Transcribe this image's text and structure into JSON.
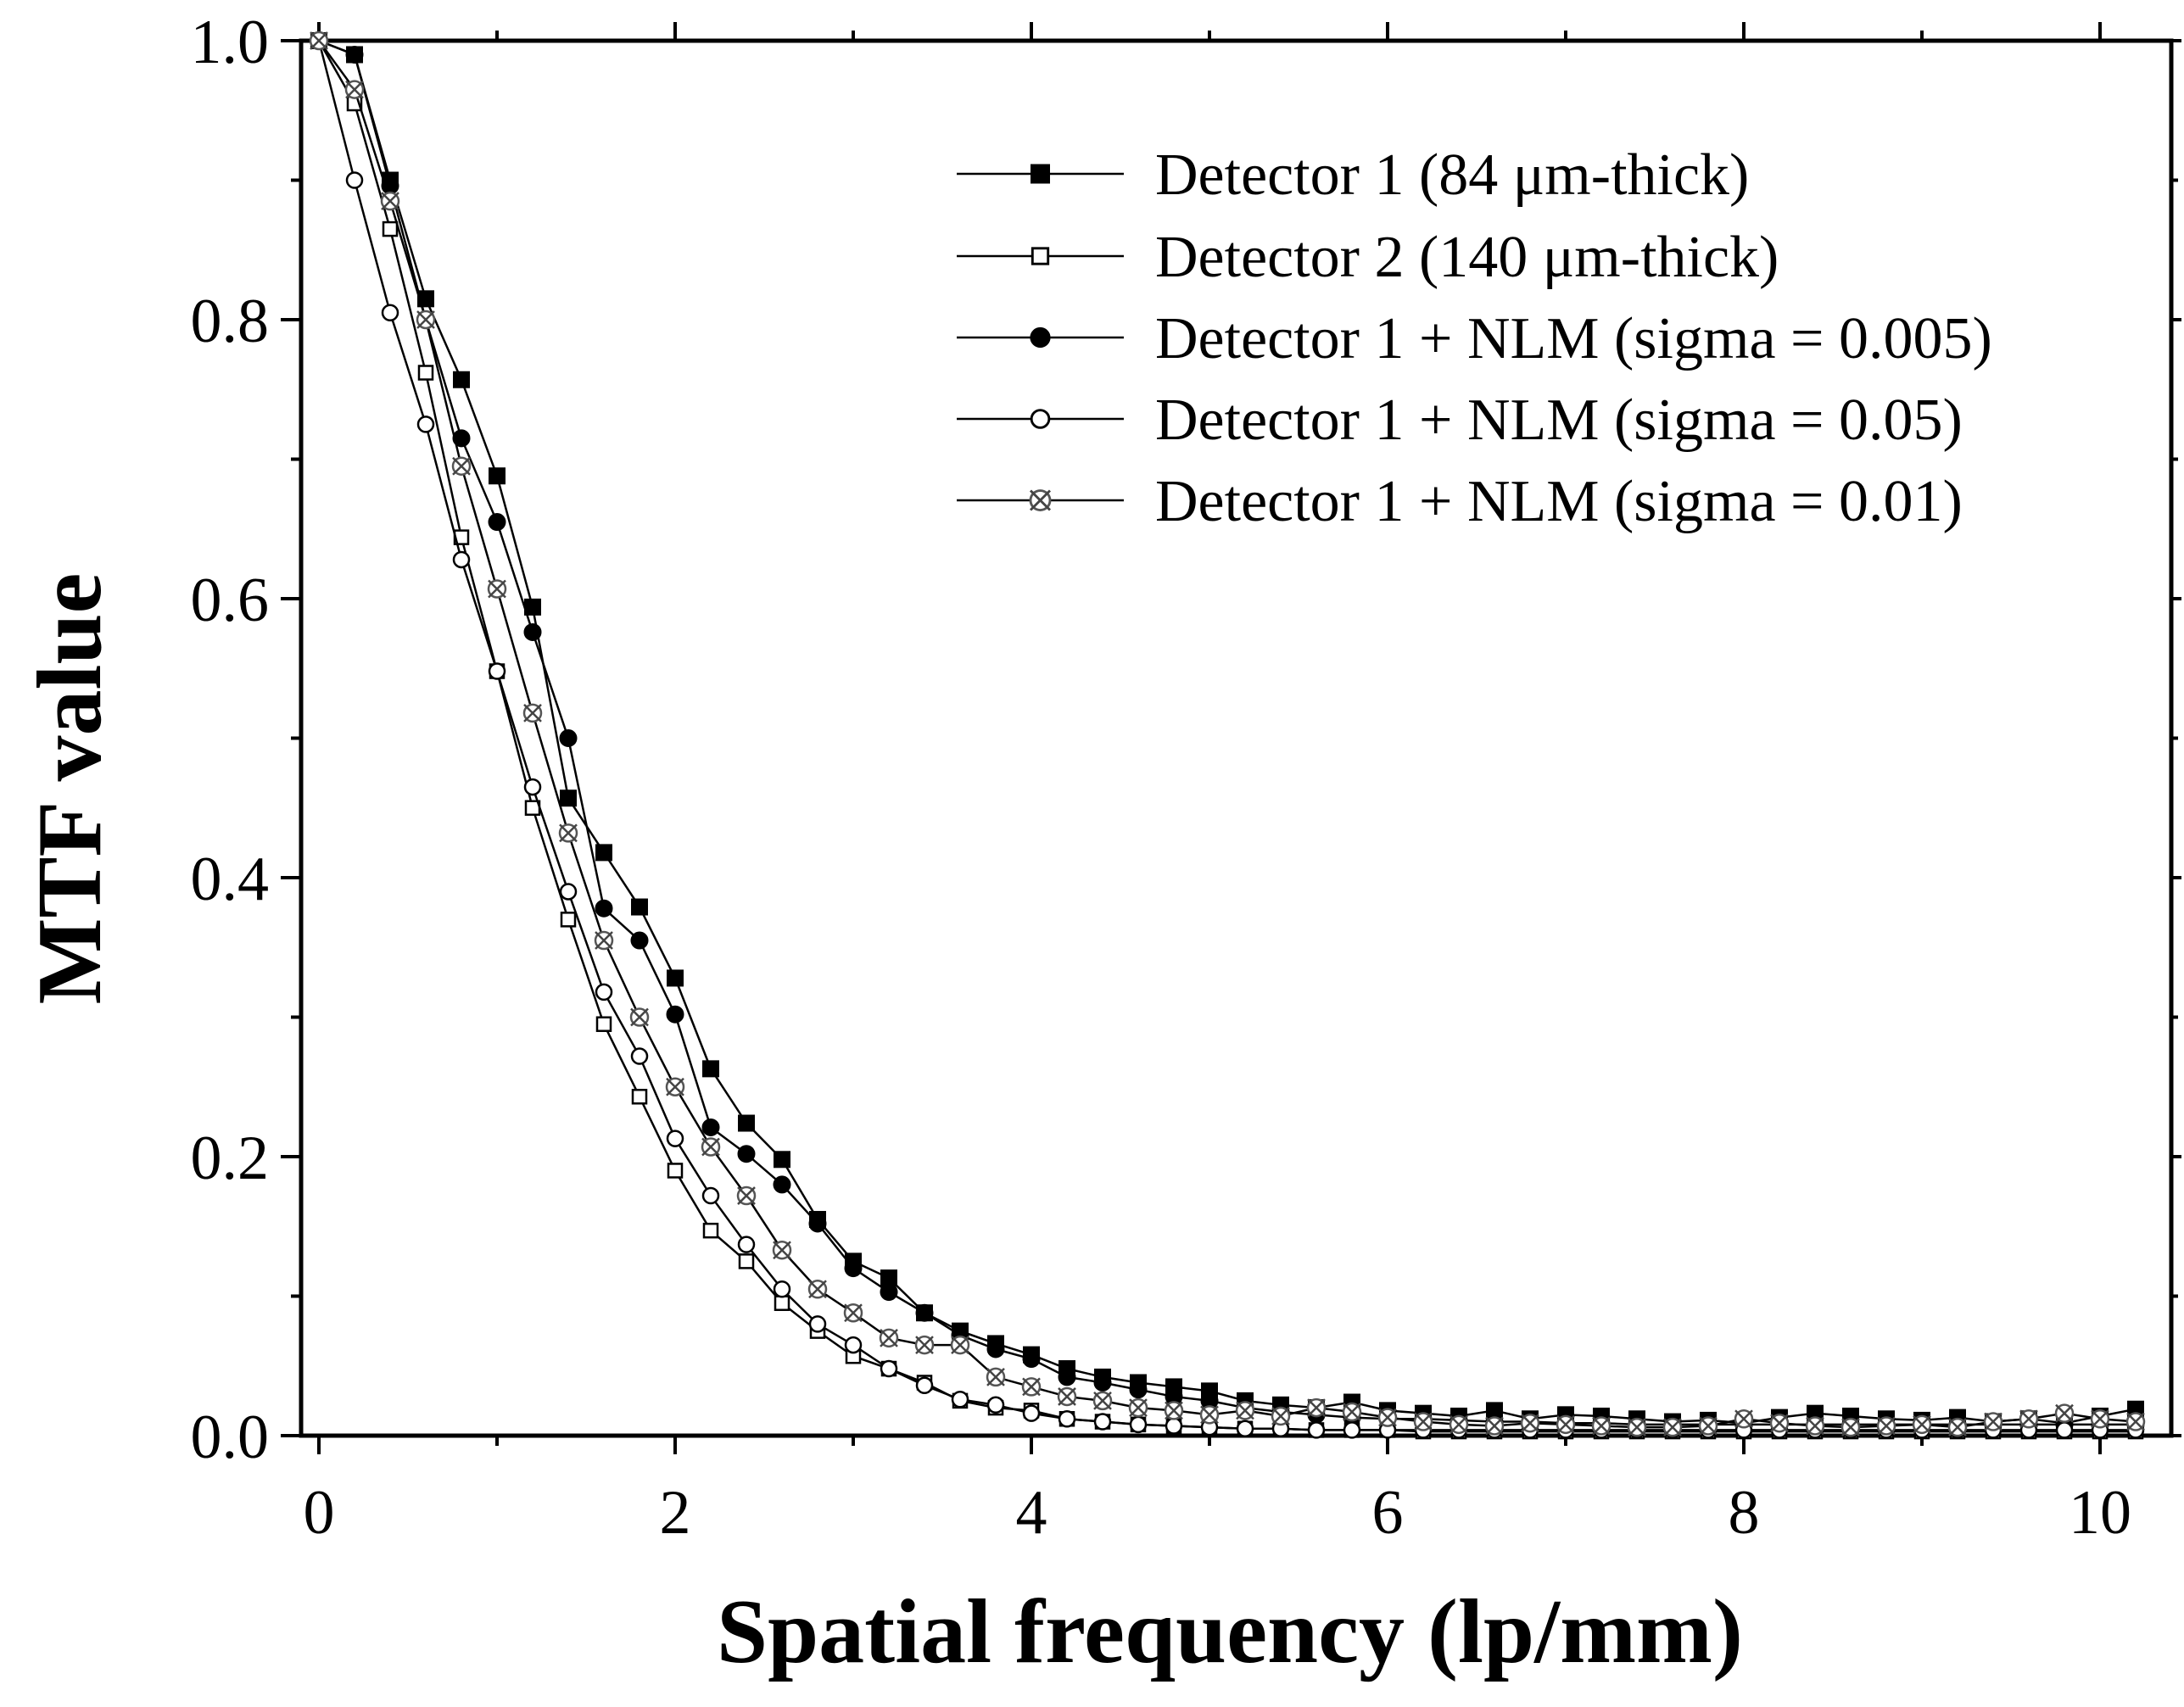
{
  "chart_data": {
    "type": "line",
    "title": "",
    "xlabel": "Spatial frequency (lp/mm)",
    "ylabel": "MTF value",
    "xlim": [
      -0.1,
      10.4
    ],
    "ylim": [
      0,
      1.0
    ],
    "x_ticks": [
      "0",
      "2",
      "4",
      "6",
      "8",
      "10"
    ],
    "y_ticks": [
      "0.0",
      "0.2",
      "0.4",
      "0.6",
      "0.8",
      "1.0"
    ],
    "legend_position": "top-right",
    "series": [
      {
        "name": "Detector 1 (84 μm-thick)",
        "marker": "square-filled",
        "x": [
          0,
          0.2,
          0.4,
          0.6,
          0.8,
          1.0,
          1.2,
          1.4,
          1.6,
          1.8,
          2.0,
          2.2,
          2.4,
          2.6,
          2.8,
          3.0,
          3.2,
          3.4,
          3.6,
          3.8,
          4.0,
          4.2,
          4.4,
          4.6,
          4.8,
          5.0,
          5.2,
          5.4,
          5.6,
          5.8,
          6.0,
          6.2,
          6.4,
          6.6,
          6.8,
          7.0,
          7.2,
          7.4,
          7.6,
          7.8,
          8.0,
          8.2,
          8.4,
          8.6,
          8.8,
          9.0,
          9.2,
          9.4,
          9.6,
          9.8,
          10.0,
          10.2
        ],
        "y": [
          1.0,
          0.99,
          0.9,
          0.815,
          0.757,
          0.688,
          0.594,
          0.457,
          0.418,
          0.379,
          0.328,
          0.263,
          0.224,
          0.198,
          0.155,
          0.125,
          0.113,
          0.088,
          0.075,
          0.066,
          0.058,
          0.048,
          0.042,
          0.038,
          0.035,
          0.032,
          0.025,
          0.022,
          0.02,
          0.024,
          0.018,
          0.016,
          0.014,
          0.018,
          0.012,
          0.015,
          0.014,
          0.012,
          0.01,
          0.011,
          0.009,
          0.013,
          0.016,
          0.014,
          0.012,
          0.011,
          0.013,
          0.01,
          0.012,
          0.009,
          0.014,
          0.019
        ]
      },
      {
        "name": "Detector 2 (140 μm-thick)",
        "marker": "square-open",
        "x": [
          0,
          0.2,
          0.4,
          0.6,
          0.8,
          1.0,
          1.2,
          1.4,
          1.6,
          1.8,
          2.0,
          2.2,
          2.4,
          2.6,
          2.8,
          3.0,
          3.2,
          3.4,
          3.6,
          3.8,
          4.0,
          4.2,
          4.4,
          4.6,
          4.8,
          5.0,
          5.2,
          5.4,
          5.6,
          5.8,
          6.0,
          6.2,
          6.4,
          6.6,
          6.8,
          7.0,
          7.2,
          7.4,
          7.6,
          7.8,
          8.0,
          8.2,
          8.4,
          8.6,
          8.8,
          9.0,
          9.2,
          9.4,
          9.6,
          9.8,
          10.0,
          10.2
        ],
        "y": [
          1.0,
          0.955,
          0.865,
          0.762,
          0.644,
          0.548,
          0.45,
          0.37,
          0.295,
          0.243,
          0.19,
          0.147,
          0.125,
          0.095,
          0.075,
          0.057,
          0.048,
          0.038,
          0.025,
          0.02,
          0.018,
          0.012,
          0.01,
          0.008,
          0.007,
          0.006,
          0.005,
          0.005,
          0.004,
          0.004,
          0.004,
          0.003,
          0.003,
          0.003,
          0.003,
          0.003,
          0.003,
          0.003,
          0.003,
          0.003,
          0.003,
          0.003,
          0.003,
          0.003,
          0.003,
          0.003,
          0.003,
          0.003,
          0.003,
          0.003,
          0.003,
          0.003
        ]
      },
      {
        "name": "Detector 1 + NLM (sigma = 0.005)",
        "marker": "circle-filled",
        "x": [
          0,
          0.2,
          0.4,
          0.6,
          0.8,
          1.0,
          1.2,
          1.4,
          1.6,
          1.8,
          2.0,
          2.2,
          2.4,
          2.6,
          2.8,
          3.0,
          3.2,
          3.4,
          3.6,
          3.8,
          4.0,
          4.2,
          4.4,
          4.6,
          4.8,
          5.0,
          5.2,
          5.4,
          5.6,
          5.8,
          6.0,
          6.2,
          6.4,
          6.6,
          6.8,
          7.0,
          7.2,
          7.4,
          7.6,
          7.8,
          8.0,
          8.2,
          8.4,
          8.6,
          8.8,
          9.0,
          9.2,
          9.4,
          9.6,
          9.8,
          10.0,
          10.2
        ],
        "y": [
          1.0,
          0.99,
          0.896,
          0.8,
          0.715,
          0.655,
          0.576,
          0.5,
          0.378,
          0.355,
          0.302,
          0.221,
          0.202,
          0.18,
          0.152,
          0.12,
          0.103,
          0.088,
          0.072,
          0.062,
          0.055,
          0.042,
          0.038,
          0.033,
          0.028,
          0.025,
          0.02,
          0.017,
          0.015,
          0.013,
          0.012,
          0.012,
          0.011,
          0.01,
          0.01,
          0.009,
          0.009,
          0.008,
          0.008,
          0.008,
          0.008,
          0.008,
          0.008,
          0.008,
          0.008,
          0.008,
          0.008,
          0.008,
          0.008,
          0.008,
          0.008,
          0.008
        ]
      },
      {
        "name": "Detector 1 + NLM (sigma = 0.05)",
        "marker": "circle-open",
        "x": [
          0,
          0.2,
          0.4,
          0.6,
          0.8,
          1.0,
          1.2,
          1.4,
          1.6,
          1.8,
          2.0,
          2.2,
          2.4,
          2.6,
          2.8,
          3.0,
          3.2,
          3.4,
          3.6,
          3.8,
          4.0,
          4.2,
          4.4,
          4.6,
          4.8,
          5.0,
          5.2,
          5.4,
          5.6,
          5.8,
          6.0,
          6.2,
          6.4,
          6.6,
          6.8,
          7.0,
          7.2,
          7.4,
          7.6,
          7.8,
          8.0,
          8.2,
          8.4,
          8.6,
          8.8,
          9.0,
          9.2,
          9.4,
          9.6,
          9.8,
          10.0,
          10.2
        ],
        "y": [
          1.0,
          0.9,
          0.805,
          0.725,
          0.628,
          0.548,
          0.465,
          0.39,
          0.318,
          0.272,
          0.213,
          0.172,
          0.137,
          0.105,
          0.08,
          0.065,
          0.048,
          0.036,
          0.026,
          0.022,
          0.016,
          0.012,
          0.01,
          0.008,
          0.007,
          0.006,
          0.005,
          0.005,
          0.004,
          0.004,
          0.004,
          0.004,
          0.004,
          0.004,
          0.004,
          0.004,
          0.004,
          0.004,
          0.004,
          0.004,
          0.004,
          0.004,
          0.004,
          0.004,
          0.004,
          0.004,
          0.004,
          0.004,
          0.004,
          0.004,
          0.004,
          0.004
        ]
      },
      {
        "name": "Detector 1 + NLM (sigma = 0.01)",
        "marker": "circle-cross",
        "x": [
          0,
          0.2,
          0.4,
          0.6,
          0.8,
          1.0,
          1.2,
          1.4,
          1.6,
          1.8,
          2.0,
          2.2,
          2.4,
          2.6,
          2.8,
          3.0,
          3.2,
          3.4,
          3.6,
          3.8,
          4.0,
          4.2,
          4.4,
          4.6,
          4.8,
          5.0,
          5.2,
          5.4,
          5.6,
          5.8,
          6.0,
          6.2,
          6.4,
          6.6,
          6.8,
          7.0,
          7.2,
          7.4,
          7.6,
          7.8,
          8.0,
          8.2,
          8.4,
          8.6,
          8.8,
          9.0,
          9.2,
          9.4,
          9.6,
          9.8,
          10.0,
          10.2
        ],
        "y": [
          1.0,
          0.965,
          0.885,
          0.8,
          0.695,
          0.607,
          0.518,
          0.432,
          0.355,
          0.3,
          0.25,
          0.207,
          0.172,
          0.133,
          0.105,
          0.088,
          0.07,
          0.065,
          0.065,
          0.042,
          0.035,
          0.028,
          0.025,
          0.02,
          0.018,
          0.015,
          0.018,
          0.014,
          0.02,
          0.017,
          0.013,
          0.01,
          0.008,
          0.007,
          0.009,
          0.008,
          0.007,
          0.006,
          0.006,
          0.007,
          0.012,
          0.009,
          0.007,
          0.006,
          0.007,
          0.008,
          0.006,
          0.01,
          0.012,
          0.016,
          0.012,
          0.01
        ]
      }
    ]
  }
}
